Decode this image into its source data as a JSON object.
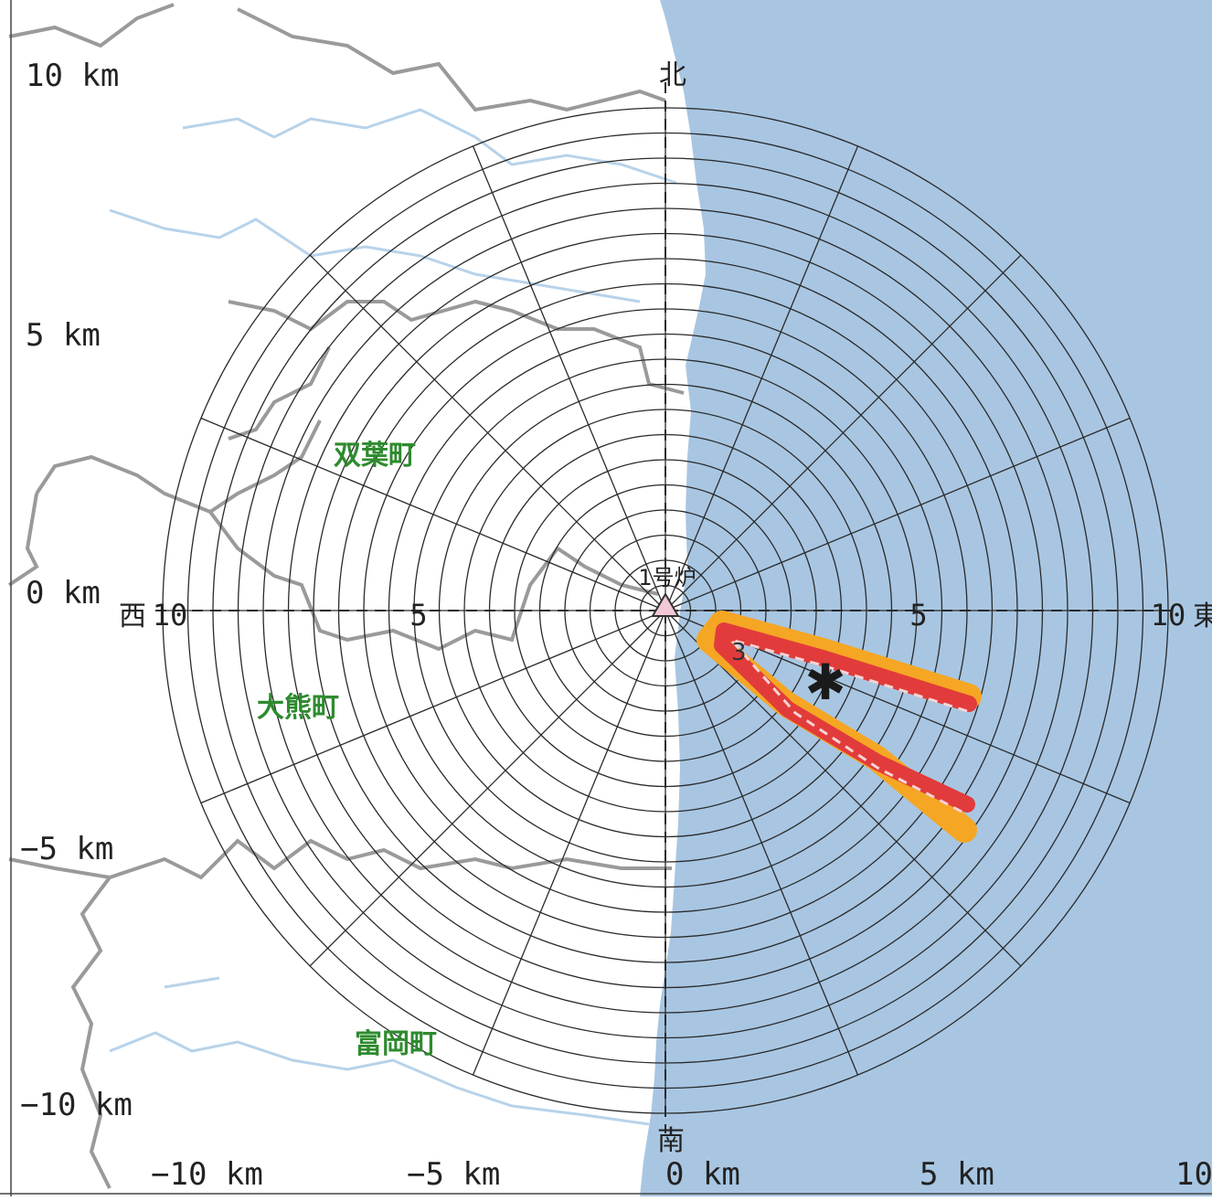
{
  "colors": {
    "sea": "#a8c6e2",
    "land": "#ffffff",
    "river": "#b7d3ea",
    "boundary": "#9a9a9a",
    "grid": "#2a2a2a",
    "town_text": "#2e8b2e",
    "plume_outer": "#f5a623",
    "plume_inner": "#e23b3b",
    "reactor_fill": "#f2c9d6"
  },
  "axis_labels": {
    "y": [
      "10 km",
      "5 km",
      "0 km",
      "−5 km",
      "−10 km"
    ],
    "x": [
      "−10 km",
      "−5 km",
      "0 km",
      "5 km",
      "10"
    ]
  },
  "compass": {
    "north": "北",
    "south": "南",
    "west": "西",
    "east": "東"
  },
  "ring_labels": {
    "west_10": "10",
    "west_5": "5",
    "east_5": "5",
    "east_10": "10"
  },
  "towns": [
    {
      "name": "双葉町"
    },
    {
      "name": "大熊町"
    },
    {
      "name": "富岡町"
    }
  ],
  "reactor": {
    "label": "1号炉",
    "icon": "triangle-marker-icon"
  },
  "marker": {
    "icon": "asterisk-marker-icon",
    "glyph": "✱"
  },
  "plume_label": "3"
}
